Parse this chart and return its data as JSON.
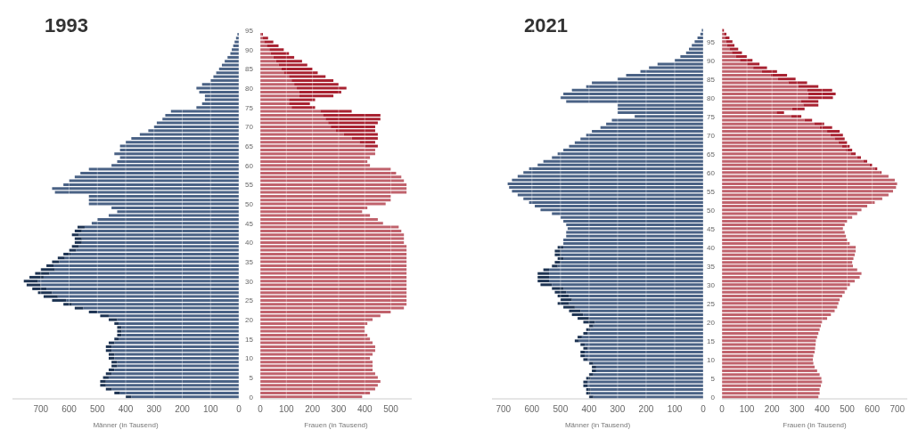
{
  "chart_data": [
    {
      "type": "bar",
      "orientation": "horizontal",
      "stacked": true,
      "title": "1993",
      "xlabel": "Männer (in Tausend)",
      "tick_labels": "x",
      "grid": "x",
      "xlim": [
        800,
        0
      ],
      "xticks": [
        700,
        600,
        500,
        400,
        300,
        200,
        100,
        0
      ],
      "categories": [
        "95",
        null,
        null,
        null,
        null,
        "90",
        null,
        null,
        null,
        null,
        "85",
        null,
        null,
        null,
        null,
        "80",
        null,
        null,
        null,
        null,
        "75",
        null,
        null,
        null,
        null,
        "70",
        null,
        null,
        null,
        null,
        "65",
        null,
        null,
        null,
        null,
        "60",
        null,
        null,
        null,
        null,
        "55",
        null,
        null,
        null,
        null,
        "50",
        null,
        null,
        null,
        null,
        "45",
        null,
        null,
        null,
        null,
        "40",
        null,
        null,
        null,
        null,
        "35",
        null,
        null,
        null,
        null,
        "30",
        null,
        null,
        null,
        null,
        "25",
        null,
        null,
        null,
        null,
        "20",
        null,
        null,
        null,
        null,
        "15",
        null,
        null,
        null,
        null,
        "10",
        null,
        null,
        null,
        null,
        "5",
        null,
        null,
        null,
        null,
        "0"
      ],
      "series": [
        {
          "color": "#4a6285",
          "values": [
            0,
            5,
            10,
            15,
            20,
            25,
            30,
            40,
            50,
            60,
            70,
            80,
            90,
            100,
            130,
            150,
            140,
            120,
            120,
            130,
            150,
            240,
            260,
            270,
            290,
            300,
            320,
            350,
            380,
            400,
            420,
            420,
            440,
            420,
            430,
            450,
            530,
            560,
            580,
            600,
            620,
            660,
            650,
            530,
            530,
            530,
            450,
            430,
            460,
            500,
            520,
            545,
            555,
            565,
            555,
            555,
            565,
            575,
            595,
            615,
            635,
            655,
            650,
            670,
            690,
            710,
            700,
            680,
            660,
            640,
            610,
            590,
            550,
            500,
            460,
            430,
            425,
            415,
            415,
            415,
            425,
            440,
            450,
            450,
            440,
            440,
            430,
            430,
            440,
            450,
            460,
            470,
            470,
            450,
            420,
            380
          ]
        },
        {
          "color": "#1d3352",
          "values": [
            0,
            0,
            0,
            0,
            0,
            0,
            0,
            0,
            0,
            0,
            0,
            0,
            0,
            0,
            0,
            0,
            0,
            0,
            0,
            0,
            0,
            0,
            0,
            0,
            0,
            0,
            0,
            0,
            0,
            0,
            0,
            0,
            0,
            0,
            0,
            0,
            0,
            0,
            0,
            0,
            0,
            0,
            0,
            0,
            0,
            0,
            0,
            0,
            0,
            0,
            0,
            25,
            25,
            25,
            25,
            25,
            25,
            25,
            25,
            25,
            25,
            25,
            50,
            50,
            50,
            50,
            50,
            50,
            50,
            50,
            50,
            30,
            30,
            30,
            30,
            30,
            15,
            15,
            15,
            15,
            15,
            20,
            20,
            20,
            20,
            20,
            20,
            20,
            20,
            20,
            20,
            20,
            20,
            20,
            20,
            20
          ]
        }
      ]
    },
    {
      "type": "bar",
      "orientation": "horizontal",
      "stacked": true,
      "xlabel": "Frauen (in Tausend)",
      "grid": "x",
      "xlim": [
        0,
        580
      ],
      "xticks": [
        0,
        100,
        200,
        300,
        400,
        500
      ],
      "categories": [
        "95",
        null,
        null,
        null,
        null,
        "90",
        null,
        null,
        null,
        null,
        "85",
        null,
        null,
        null,
        null,
        "80",
        null,
        null,
        null,
        null,
        "75",
        null,
        null,
        null,
        null,
        "70",
        null,
        null,
        null,
        null,
        "65",
        null,
        null,
        null,
        null,
        "60",
        null,
        null,
        null,
        null,
        "55",
        null,
        null,
        null,
        null,
        "50",
        null,
        null,
        null,
        null,
        "45",
        null,
        null,
        null,
        null,
        "40",
        null,
        null,
        null,
        null,
        "35",
        null,
        null,
        null,
        null,
        "30",
        null,
        null,
        null,
        null,
        "25",
        null,
        null,
        null,
        null,
        "20",
        null,
        null,
        null,
        null,
        "15",
        null,
        null,
        null,
        null,
        "10",
        null,
        null,
        null,
        null,
        "5",
        null,
        null,
        null,
        null,
        "0"
      ],
      "series": [
        {
          "color": "#c0626c",
          "values": [
            0,
            5,
            10,
            15,
            25,
            35,
            40,
            50,
            60,
            70,
            80,
            90,
            110,
            120,
            130,
            140,
            150,
            150,
            110,
            110,
            120,
            230,
            240,
            250,
            260,
            270,
            290,
            320,
            350,
            380,
            400,
            440,
            440,
            420,
            410,
            420,
            500,
            520,
            540,
            550,
            560,
            560,
            560,
            500,
            500,
            480,
            410,
            390,
            420,
            450,
            470,
            530,
            540,
            550,
            550,
            550,
            560,
            560,
            560,
            560,
            560,
            560,
            560,
            560,
            560,
            560,
            560,
            560,
            560,
            560,
            560,
            560,
            550,
            500,
            460,
            430,
            410,
            400,
            400,
            410,
            420,
            430,
            440,
            440,
            430,
            420,
            430,
            430,
            430,
            440,
            450,
            460,
            450,
            440,
            420,
            390
          ]
        },
        {
          "color": "#a82231",
          "values": [
            0,
            5,
            20,
            35,
            45,
            55,
            70,
            80,
            100,
            110,
            120,
            130,
            140,
            160,
            170,
            190,
            160,
            130,
            100,
            80,
            90,
            120,
            220,
            210,
            190,
            170,
            150,
            130,
            100,
            60,
            50,
            0,
            0,
            0,
            0,
            0,
            0,
            0,
            0,
            0,
            0,
            0,
            0,
            0,
            0,
            0,
            0,
            0,
            0,
            0,
            0,
            0,
            0,
            0,
            0,
            0,
            0,
            0,
            0,
            0,
            0,
            0,
            0,
            0,
            0,
            0,
            0,
            0,
            0,
            0,
            0,
            0,
            0,
            0,
            0,
            0,
            0,
            0,
            0,
            0,
            0,
            0,
            0,
            0,
            0,
            0,
            0,
            0,
            0,
            0,
            0,
            0,
            0,
            0,
            0,
            0
          ]
        }
      ]
    },
    {
      "type": "bar",
      "orientation": "horizontal",
      "stacked": true,
      "title": "2021",
      "xlabel": "Männer (in Tausend)",
      "tick_labels": "x",
      "grid": "x",
      "xlim": [
        740,
        0
      ],
      "xticks": [
        700,
        600,
        500,
        400,
        300,
        200,
        100,
        0
      ],
      "categories": [
        null,
        null,
        null,
        "95",
        null,
        null,
        null,
        null,
        "90",
        null,
        null,
        null,
        null,
        "85",
        null,
        null,
        null,
        null,
        "80",
        null,
        null,
        null,
        null,
        "75",
        null,
        null,
        null,
        null,
        "70",
        null,
        null,
        null,
        null,
        "65",
        null,
        null,
        null,
        null,
        "60",
        null,
        null,
        null,
        null,
        "55",
        null,
        null,
        null,
        null,
        "50",
        null,
        null,
        null,
        null,
        "45",
        null,
        null,
        null,
        null,
        "40",
        null,
        null,
        null,
        null,
        "35",
        null,
        null,
        null,
        null,
        "30",
        null,
        null,
        null,
        null,
        "25",
        null,
        null,
        null,
        null,
        "20",
        null,
        null,
        null,
        null,
        "15",
        null,
        null,
        null,
        null,
        "10",
        null,
        null,
        null,
        null,
        "5",
        null,
        null,
        null,
        null,
        "0"
      ],
      "series": [
        {
          "color": "#4a6285",
          "values": [
            5,
            10,
            20,
            30,
            40,
            50,
            60,
            80,
            100,
            160,
            190,
            220,
            270,
            300,
            390,
            410,
            460,
            490,
            500,
            480,
            300,
            300,
            300,
            240,
            320,
            340,
            360,
            390,
            410,
            430,
            450,
            470,
            490,
            510,
            530,
            560,
            580,
            610,
            630,
            650,
            670,
            685,
            680,
            670,
            650,
            630,
            610,
            590,
            570,
            530,
            500,
            490,
            480,
            475,
            480,
            480,
            490,
            490,
            490,
            500,
            500,
            490,
            500,
            510,
            540,
            540,
            540,
            540,
            530,
            490,
            480,
            470,
            460,
            470,
            450,
            430,
            420,
            400,
            380,
            385,
            395,
            405,
            425,
            435,
            415,
            405,
            415,
            415,
            405,
            385,
            375,
            375,
            385,
            395,
            405,
            405,
            395,
            395,
            385
          ]
        },
        {
          "color": "#1d3352",
          "values": [
            0,
            0,
            0,
            0,
            0,
            0,
            0,
            0,
            0,
            0,
            0,
            0,
            0,
            0,
            0,
            0,
            0,
            0,
            0,
            0,
            0,
            0,
            0,
            0,
            0,
            0,
            0,
            0,
            0,
            0,
            0,
            0,
            0,
            0,
            0,
            0,
            0,
            0,
            0,
            0,
            0,
            0,
            0,
            0,
            0,
            0,
            0,
            0,
            0,
            0,
            0,
            0,
            0,
            0,
            0,
            0,
            0,
            0,
            20,
            20,
            20,
            20,
            20,
            20,
            20,
            40,
            40,
            40,
            40,
            40,
            40,
            40,
            40,
            40,
            40,
            40,
            40,
            40,
            40,
            15,
            15,
            15,
            15,
            15,
            15,
            15,
            15,
            15,
            15,
            15,
            15,
            15,
            15,
            15,
            15,
            15,
            15,
            15,
            15
          ]
        }
      ]
    },
    {
      "type": "bar",
      "orientation": "horizontal",
      "stacked": true,
      "xlabel": "Frauen (in Tausend)",
      "grid": "x",
      "xlim": [
        0,
        740
      ],
      "xticks": [
        0,
        100,
        200,
        300,
        400,
        500,
        600,
        700
      ],
      "categories": [
        null,
        null,
        null,
        "95",
        null,
        null,
        null,
        null,
        "90",
        null,
        null,
        null,
        null,
        "85",
        null,
        null,
        null,
        null,
        "80",
        null,
        null,
        null,
        null,
        "75",
        null,
        null,
        null,
        null,
        "70",
        null,
        null,
        null,
        null,
        "65",
        null,
        null,
        null,
        null,
        "60",
        null,
        null,
        null,
        null,
        "55",
        null,
        null,
        null,
        null,
        "50",
        null,
        null,
        null,
        null,
        "45",
        null,
        null,
        null,
        null,
        "40",
        null,
        null,
        null,
        null,
        "35",
        null,
        null,
        null,
        null,
        "30",
        null,
        null,
        null,
        null,
        "25",
        null,
        null,
        null,
        null,
        "20",
        null,
        null,
        null,
        null,
        "15",
        null,
        null,
        null,
        null,
        "10",
        null,
        null,
        null,
        null,
        "5",
        null,
        null,
        null,
        null,
        "0"
      ],
      "series": [
        {
          "color": "#c0626c",
          "values": [
            3,
            8,
            12,
            17,
            20,
            30,
            40,
            55,
            72,
            100,
            125,
            160,
            195,
            224,
            265,
            305,
            340,
            344,
            343,
            315,
            325,
            280,
            218,
            277,
            330,
            368,
            390,
            420,
            433,
            450,
            465,
            480,
            495,
            514,
            540,
            565,
            590,
            610,
            632,
            665,
            690,
            700,
            695,
            683,
            665,
            640,
            610,
            580,
            557,
            540,
            520,
            500,
            490,
            483,
            490,
            495,
            500,
            510,
            534,
            534,
            530,
            525,
            520,
            523,
            540,
            557,
            550,
            530,
            511,
            500,
            490,
            480,
            470,
            465,
            460,
            450,
            435,
            420,
            400,
            395,
            390,
            385,
            380,
            375,
            374,
            372,
            370,
            365,
            363,
            365,
            370,
            380,
            390,
            397,
            400,
            395,
            390,
            390,
            385
          ]
        },
        {
          "color": "#a82231",
          "values": [
            5,
            10,
            18,
            25,
            30,
            35,
            40,
            45,
            50,
            50,
            55,
            60,
            65,
            70,
            75,
            80,
            100,
            110,
            100,
            70,
            60,
            50,
            30,
            40,
            30,
            40,
            50,
            50,
            50,
            40,
            35,
            30,
            25,
            20,
            15,
            15,
            10,
            10,
            5,
            0,
            0,
            0,
            0,
            0,
            0,
            0,
            0,
            0,
            0,
            0,
            0,
            0,
            0,
            0,
            0,
            0,
            0,
            0,
            0,
            0,
            0,
            0,
            0,
            0,
            0,
            0,
            0,
            0,
            0,
            0,
            0,
            0,
            0,
            0,
            0,
            0,
            0,
            0,
            0,
            0,
            0,
            0,
            0,
            0,
            0,
            0,
            0,
            0,
            0,
            0,
            0,
            0,
            0,
            0,
            0,
            0,
            0,
            0,
            0
          ]
        }
      ]
    }
  ]
}
